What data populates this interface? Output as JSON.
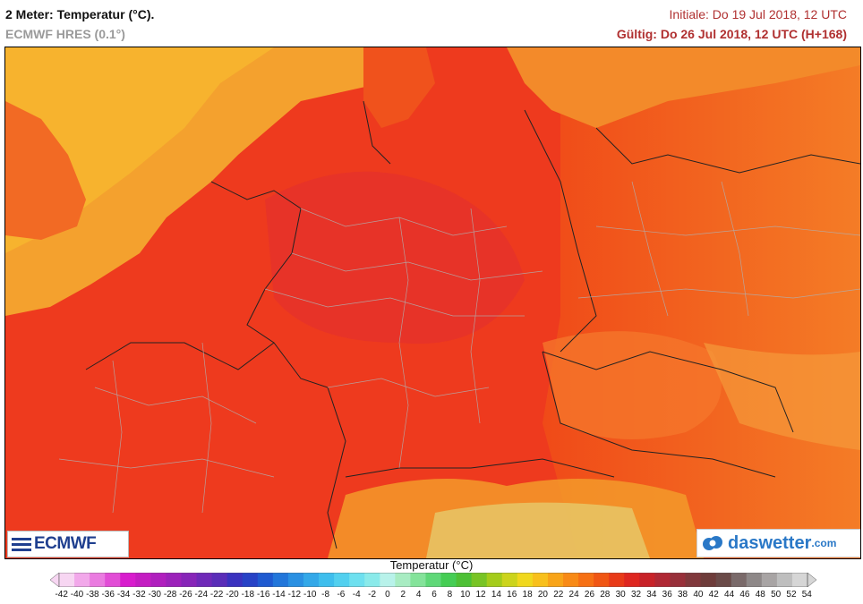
{
  "header": {
    "title": "2 Meter: Temperatur (°C).",
    "model": "ECMWF HRES (0.1°)",
    "initial": "Initiale: Do 19 Jul 2018, 12 UTC",
    "valid": "Gültig: Do 26 Jul 2018, 12 UTC (H+168)"
  },
  "logos": {
    "ecmwf": "ECMWF",
    "daswetter_main": "daswetter",
    "daswetter_domain": ".com"
  },
  "legend": {
    "title": "Temperatur (°C)",
    "ticks": [
      "-42",
      "-40",
      "-38",
      "-36",
      "-34",
      "-32",
      "-30",
      "-28",
      "-26",
      "-24",
      "-22",
      "-20",
      "-18",
      "-16",
      "-14",
      "-12",
      "-10",
      "-8",
      "-6",
      "-4",
      "-2",
      "0",
      "2",
      "4",
      "6",
      "8",
      "10",
      "12",
      "14",
      "16",
      "18",
      "20",
      "22",
      "24",
      "26",
      "28",
      "30",
      "32",
      "34",
      "36",
      "38",
      "40",
      "42",
      "44",
      "46",
      "48",
      "50",
      "52",
      "54"
    ],
    "colors": [
      "#f7d6f2",
      "#f2a8ea",
      "#ea7be0",
      "#e24dd6",
      "#d81ccd",
      "#c41dc2",
      "#b01fbe",
      "#9c22ba",
      "#8725b8",
      "#6f29b8",
      "#5a2db8",
      "#3a32bf",
      "#2742c6",
      "#1f5ad0",
      "#2276da",
      "#2a90e2",
      "#33a8e8",
      "#3ebeed",
      "#52d0ef",
      "#6ee0ef",
      "#8aeaea",
      "#b8f2ea",
      "#a8ecc2",
      "#84e39a",
      "#5fd878",
      "#45cd54",
      "#4dc035",
      "#78c425",
      "#a4cc1b",
      "#ccd41c",
      "#f0d81e",
      "#f8c01c",
      "#f8a418",
      "#f88a16",
      "#f67014",
      "#f05614",
      "#e83a18",
      "#de2620",
      "#c82228",
      "#b02834",
      "#98303a",
      "#80383c",
      "#6e3c3a",
      "#6a4a48",
      "#7a6a6a",
      "#8e8888",
      "#a8a4a4",
      "#bebebe",
      "#d6d6d6"
    ]
  }
}
